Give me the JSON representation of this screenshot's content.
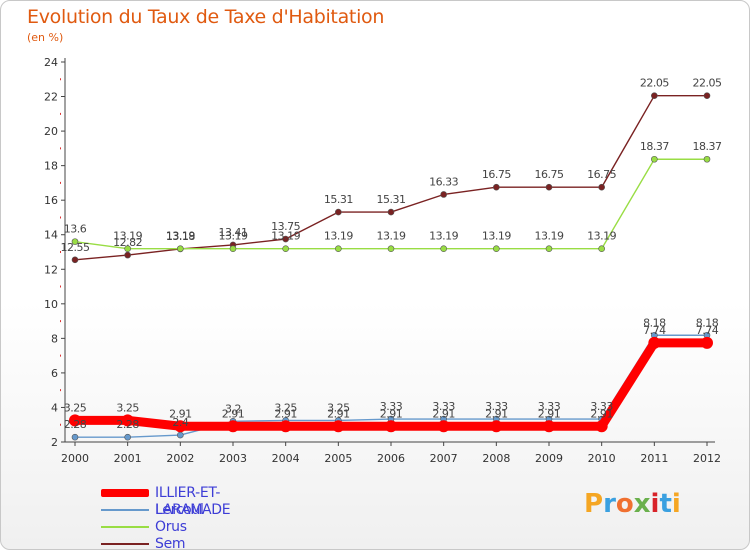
{
  "header": {
    "title": "Evolution du Taux de Taxe d'Habitation",
    "subtitle": "(en %)"
  },
  "chart_data": {
    "type": "line",
    "title": "Evolution du Taux de Taxe d'Habitation",
    "subtitle": "(en %)",
    "x": [
      "2000",
      "2001",
      "2002",
      "2003",
      "2004",
      "2005",
      "2006",
      "2007",
      "2008",
      "2009",
      "2010",
      "2011",
      "2012"
    ],
    "ylim": [
      2,
      24
    ],
    "yticks": [
      2,
      4,
      6,
      8,
      10,
      12,
      14,
      16,
      18,
      20,
      22,
      24
    ],
    "grid": false,
    "legend_position": "bottom-left",
    "series": [
      {
        "name": "ILLIER-ET-LARAMADE",
        "color": "#ff0000",
        "values": [
          3.25,
          3.25,
          2.91,
          2.91,
          2.91,
          2.91,
          2.91,
          2.91,
          2.91,
          2.91,
          2.91,
          7.74,
          7.74
        ],
        "labels": [
          "3.25",
          "3.25",
          "2.91",
          "2.91",
          "2.91",
          "2.91",
          "2.91",
          "2.91",
          "2.91",
          "2.91",
          "2.91",
          "7.74",
          "7.74"
        ]
      },
      {
        "name": "Lercoul",
        "color": "#6699cc",
        "values": [
          2.28,
          2.28,
          2.4,
          3.2,
          3.25,
          3.25,
          3.33,
          3.33,
          3.33,
          3.33,
          3.33,
          8.18,
          8.18
        ],
        "labels": [
          "2.28",
          "2.28",
          "2.4",
          "3.2",
          "3.25",
          "3.25",
          "3.33",
          "3.33",
          "3.33",
          "3.33",
          "3.33",
          "8.18",
          "8.18"
        ]
      },
      {
        "name": "Orus",
        "color": "#99dd44",
        "values": [
          13.6,
          13.19,
          13.19,
          13.19,
          13.19,
          13.19,
          13.19,
          13.19,
          13.19,
          13.19,
          13.19,
          18.37,
          18.37
        ],
        "labels": [
          "13.6",
          "13.19",
          "13.19",
          "13.19",
          "13.19",
          "13.19",
          "13.19",
          "13.19",
          "13.19",
          "13.19",
          "13.19",
          "18.37",
          "18.37"
        ]
      },
      {
        "name": "Sem",
        "color": "#7a2222",
        "values": [
          12.55,
          12.82,
          13.18,
          13.41,
          13.75,
          15.31,
          15.31,
          16.33,
          16.75,
          16.75,
          16.75,
          22.05,
          22.05
        ],
        "labels": [
          "12.55",
          "12.82",
          "13.18",
          "13.41",
          "13.75",
          "15.31",
          "15.31",
          "16.33",
          "16.75",
          "16.75",
          "16.75",
          "22.05",
          "22.05"
        ]
      }
    ]
  },
  "legend": {
    "items": [
      {
        "label": "ILLIER-ET-LARAMADE",
        "color": "#ff0000",
        "weight": "thick"
      },
      {
        "label": "Lercoul",
        "color": "#6699cc",
        "weight": "thin"
      },
      {
        "label": "Orus",
        "color": "#99dd44",
        "weight": "thin"
      },
      {
        "label": "Sem",
        "color": "#7a2222",
        "weight": "thin"
      }
    ]
  },
  "logo": {
    "letters": [
      "P",
      "r",
      "o",
      "x",
      "i",
      "t",
      "i"
    ],
    "colors": [
      "#f5a623",
      "#3aa0e0",
      "#f07030",
      "#6ab04c",
      "#d8232a",
      "#3aa0e0",
      "#f5a623"
    ]
  }
}
